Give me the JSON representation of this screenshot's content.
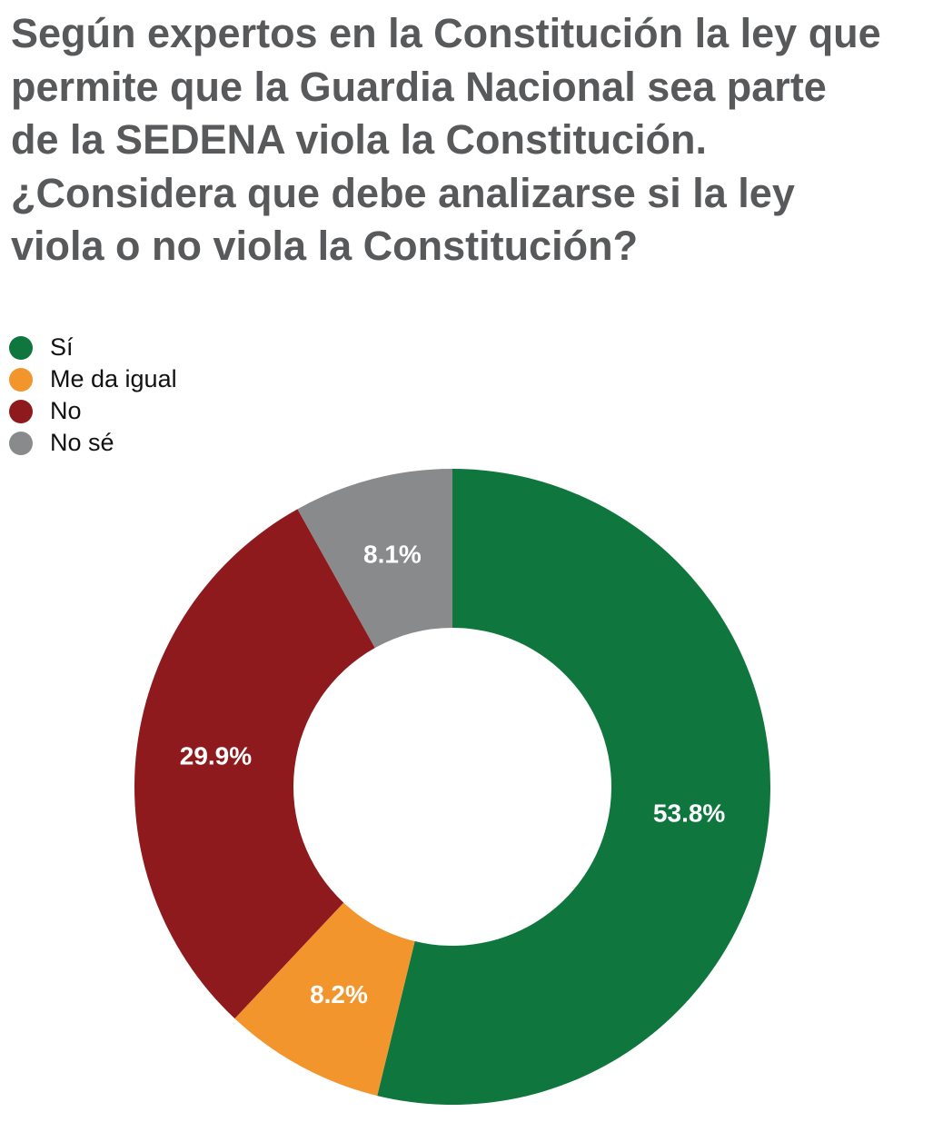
{
  "chart_data": {
    "type": "donut",
    "title": "Según expertos en la Constitución la ley que permite que la Guardia Nacional sea parte de la SEDENA viola la Constitución. ¿Considera que debe analizarse si la ley viola o no viola la Constitución?",
    "categories": [
      "Sí",
      "Me da igual",
      "No",
      "No sé"
    ],
    "values": [
      53.8,
      8.2,
      29.9,
      8.1
    ],
    "value_labels": [
      "53.8%",
      "8.2%",
      "29.9%",
      "8.1%"
    ],
    "colors": [
      "#0f763d",
      "#f3952d",
      "#8e1a1e",
      "#888a8b"
    ],
    "legend": "top-left"
  }
}
